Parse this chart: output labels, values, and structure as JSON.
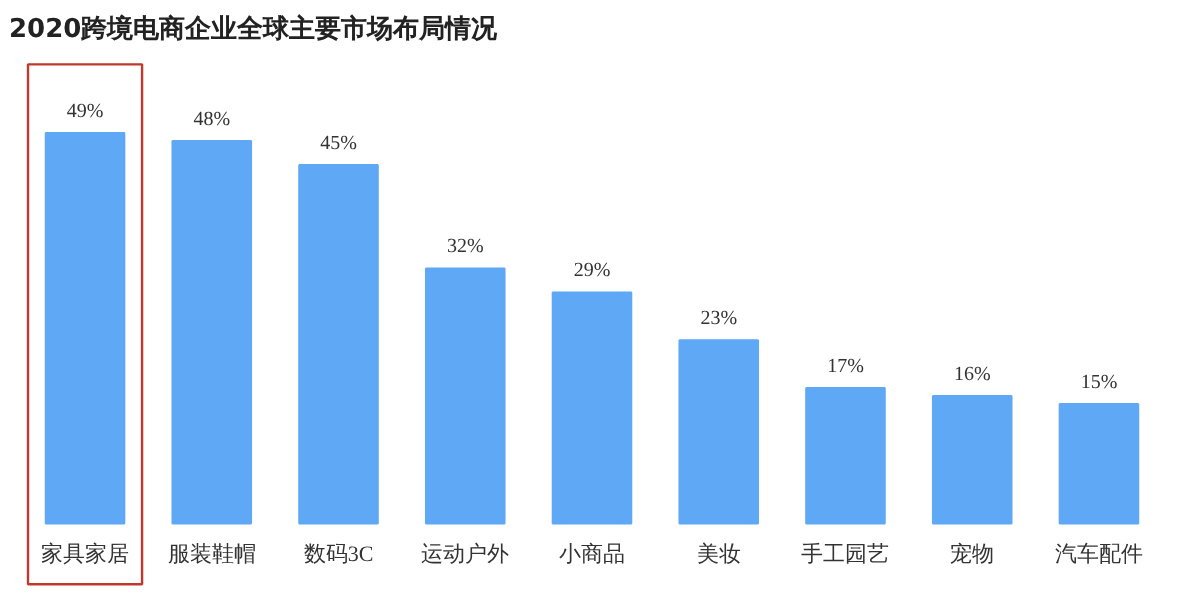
{
  "chart_data": {
    "type": "bar",
    "title": "2020跨境电商企业全球主要市场布局情况",
    "categories": [
      "家具家居",
      "服装鞋帽",
      "数码3C",
      "运动户外",
      "小商品",
      "美妆",
      "手工园艺",
      "宠物",
      "汽车配件"
    ],
    "values": [
      49,
      48,
      45,
      32,
      29,
      23,
      17,
      16,
      15
    ],
    "value_labels": [
      "49%",
      "48%",
      "45%",
      "32%",
      "29%",
      "23%",
      "17%",
      "16%",
      "15%"
    ],
    "color": "#5fa8f5"
  }
}
